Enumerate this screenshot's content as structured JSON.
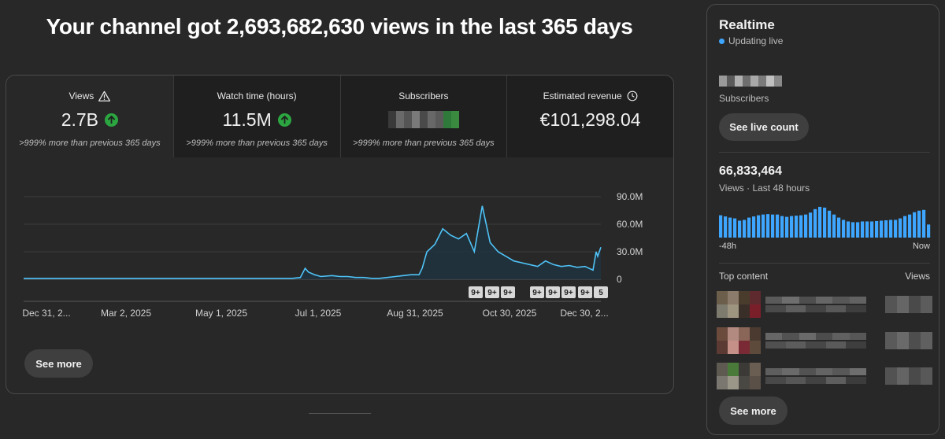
{
  "headline": "Your channel got 2,693,682,630 views in the last 365 days",
  "metrics": [
    {
      "title": "Views",
      "value": "2.7B",
      "note": ">999% more than previous 365 days",
      "icon": "warning-icon",
      "trend": "up"
    },
    {
      "title": "Watch time (hours)",
      "value": "11.5M",
      "note": ">999% more than previous 365 days",
      "trend": "up"
    },
    {
      "title": "Subscribers",
      "value": "",
      "note": ">999% more than previous 365 days",
      "redacted": true
    },
    {
      "title": "Estimated revenue",
      "value": "€101,298.04",
      "note": "",
      "icon": "clock-icon"
    }
  ],
  "chart_data": {
    "type": "area",
    "title": "",
    "xlabel": "",
    "ylabel": "",
    "x_tick_labels": [
      "Dec 31, 2...",
      "Mar 2, 2025",
      "May 1, 2025",
      "Jul 1, 2025",
      "Aug 31, 2025",
      "Oct 30, 2025",
      "Dec 30, 2..."
    ],
    "y_tick_labels": [
      "90.0M",
      "60.0M",
      "30.0M",
      "0"
    ],
    "ylim": [
      0,
      90
    ],
    "y_unit": "M views",
    "x_range_days": [
      0,
      365
    ],
    "series": [
      {
        "x": [
          0,
          20,
          40,
          60,
          80,
          100,
          120,
          140,
          160,
          170,
          175,
          178,
          180,
          184,
          188,
          195,
          200,
          205,
          210,
          215,
          220,
          225,
          230,
          235,
          240,
          245,
          250,
          252,
          255,
          260,
          265,
          270,
          275,
          280,
          285,
          290,
          295,
          300,
          305,
          310,
          315,
          320,
          325,
          330,
          335,
          340,
          345,
          350,
          355,
          360,
          362,
          363,
          365
        ],
        "values": [
          1,
          1,
          1,
          1,
          1,
          1,
          1,
          1,
          1,
          1,
          2,
          12,
          8,
          5,
          3,
          4,
          3,
          3,
          2,
          2,
          1,
          1,
          2,
          3,
          4,
          5,
          5,
          12,
          30,
          38,
          55,
          48,
          44,
          50,
          30,
          80,
          40,
          30,
          25,
          20,
          18,
          16,
          14,
          20,
          16,
          14,
          15,
          13,
          14,
          10,
          30,
          25,
          35
        ]
      }
    ],
    "annotations": [
      "9+",
      "9+",
      "9+",
      "9+",
      "9+",
      "9+",
      "9+",
      "5"
    ],
    "grid": true,
    "color": "#4fc3f7"
  },
  "see_more": "See more",
  "realtime": {
    "title": "Realtime",
    "status": "Updating live",
    "subscribers_label": "Subscribers",
    "see_live_count": "See live count",
    "views_value": "66,833,464",
    "views_label": "Views · Last 48 hours",
    "axis_left": "-48h",
    "axis_right": "Now",
    "bars": [
      58,
      55,
      52,
      50,
      44,
      46,
      52,
      55,
      58,
      60,
      61,
      60,
      60,
      56,
      54,
      56,
      57,
      58,
      60,
      65,
      74,
      80,
      78,
      70,
      60,
      52,
      46,
      42,
      40,
      40,
      42,
      42,
      42,
      43,
      44,
      45,
      46,
      46,
      50,
      56,
      60,
      66,
      70,
      72,
      34
    ],
    "top_content_label": "Top content",
    "views_col_label": "Views",
    "see_more": "See more",
    "accent": "#3ea6ff"
  }
}
